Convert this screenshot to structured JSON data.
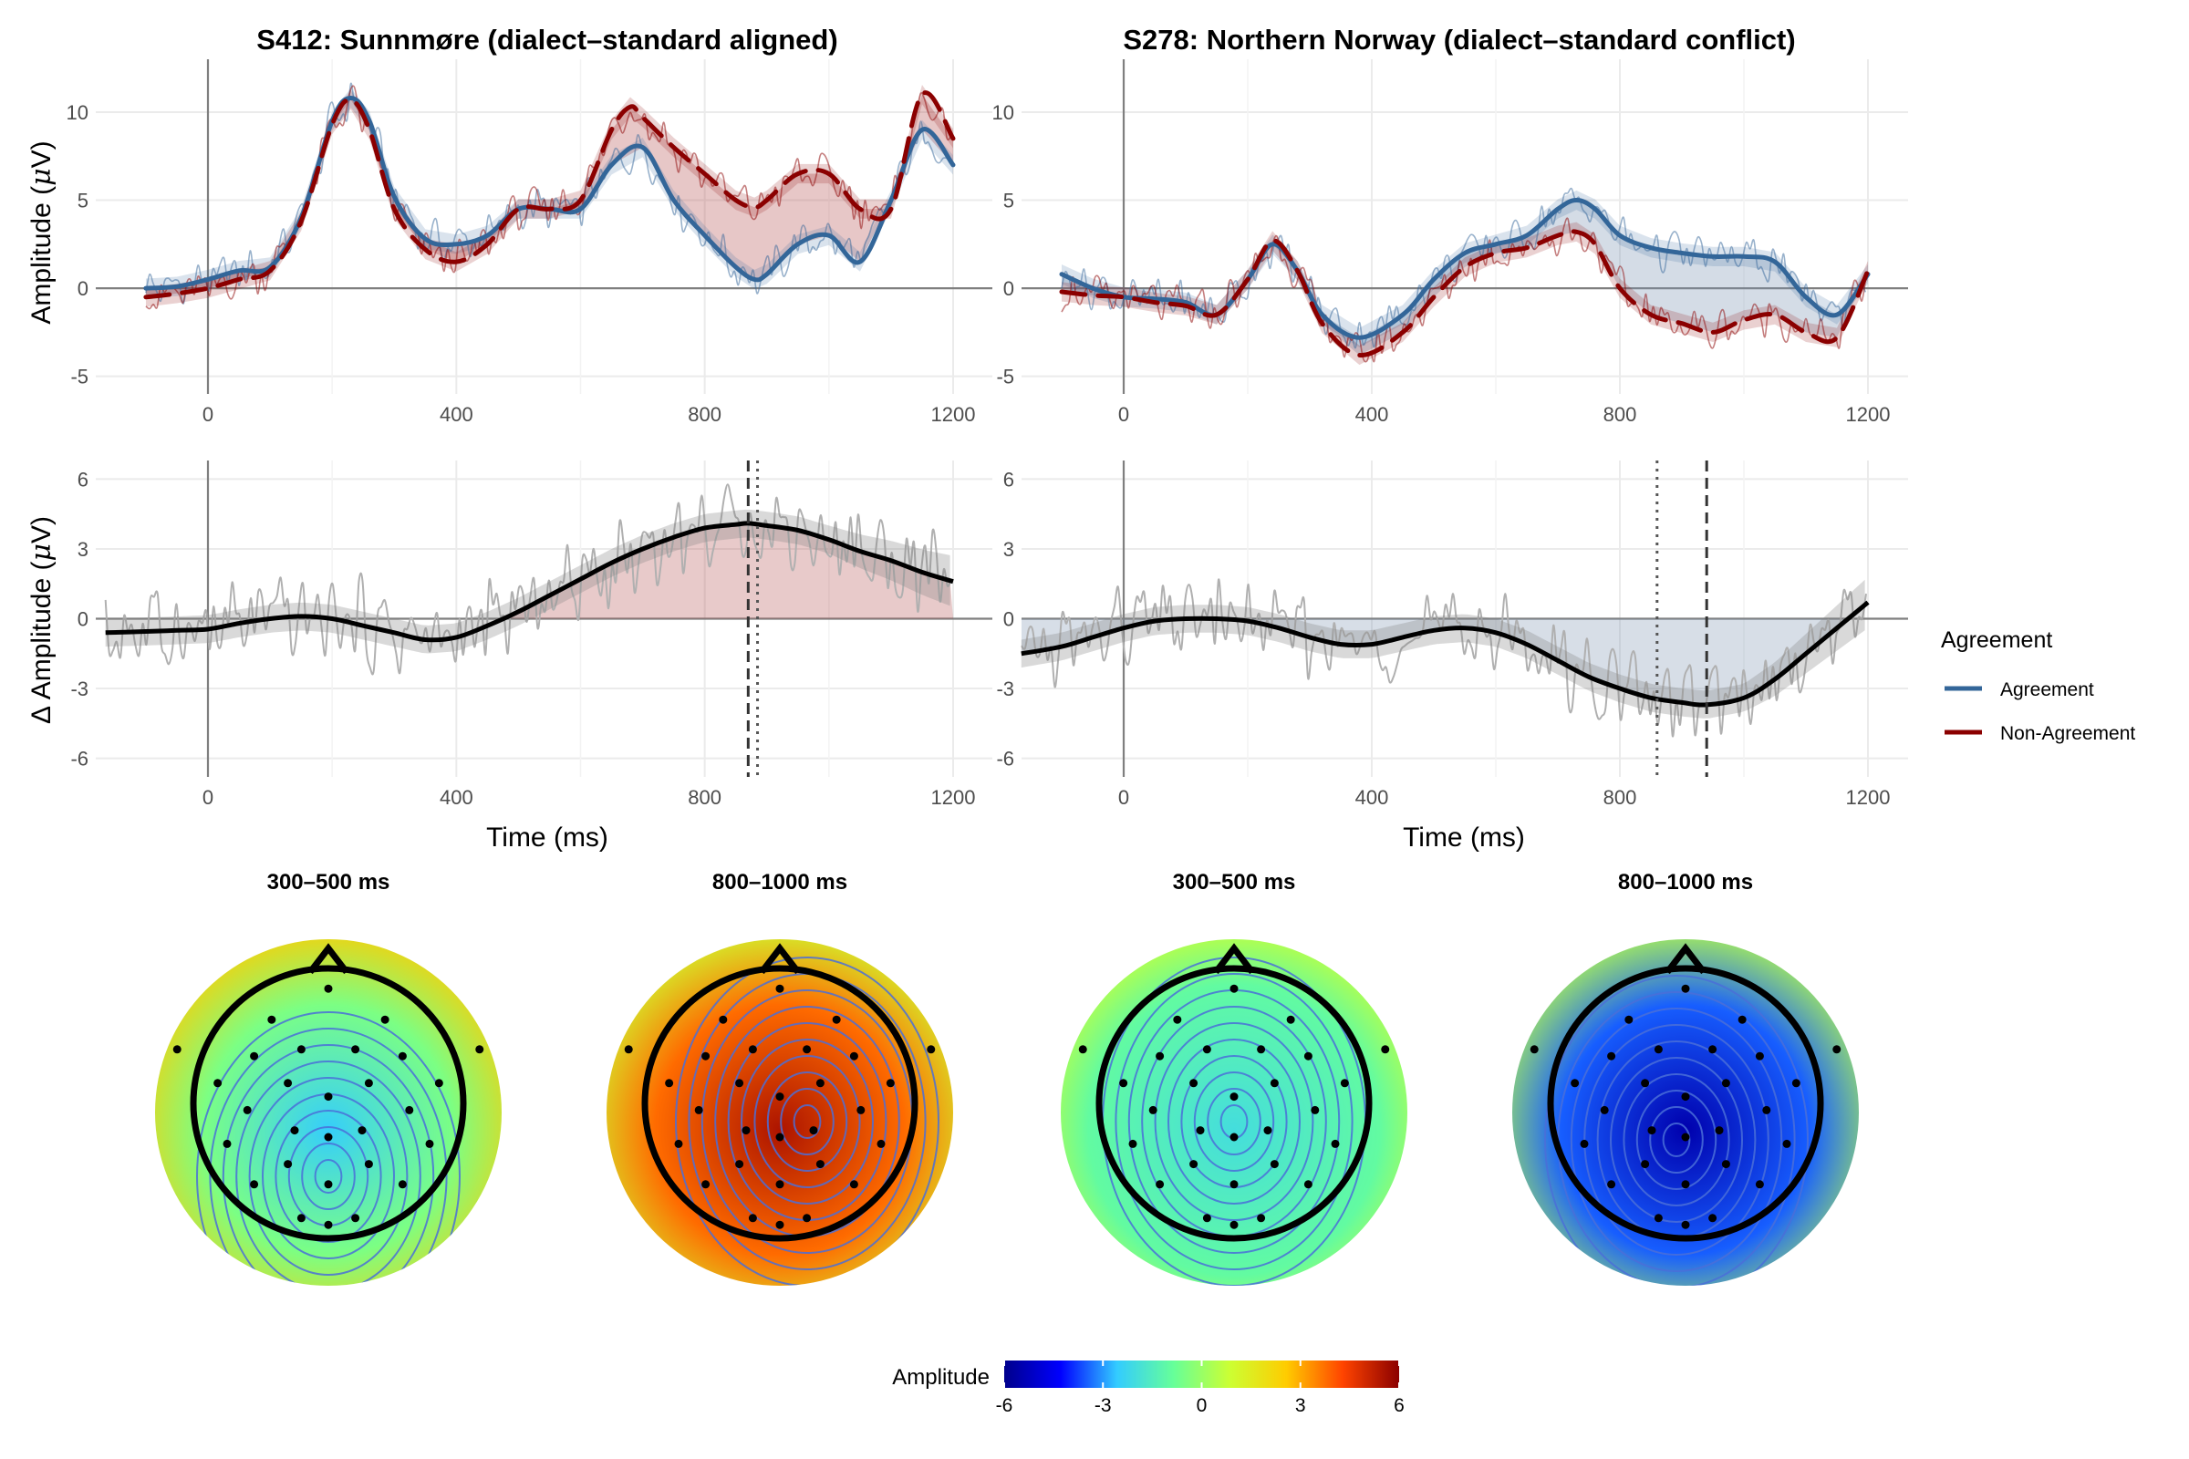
{
  "chart_data": [
    {
      "type": "line",
      "title": "S412: Sunnmøre (dialect–standard aligned)",
      "xlabel": "",
      "ylabel": "Amplitude (μV)",
      "xlim": [
        -100,
        1200
      ],
      "ylim": [
        -6,
        13
      ],
      "xticks": [
        0,
        400,
        800,
        1200
      ],
      "yticks": [
        -5,
        0,
        5,
        10
      ],
      "shaded_region": "Non-Agreement above Agreement",
      "series": [
        {
          "name": "Agreement",
          "color": "#336699",
          "x": [
            -100,
            -50,
            0,
            50,
            100,
            150,
            200,
            230,
            260,
            300,
            350,
            400,
            450,
            500,
            550,
            600,
            650,
            700,
            750,
            800,
            850,
            880,
            900,
            950,
            1000,
            1050,
            1100,
            1150,
            1200
          ],
          "y": [
            0.0,
            0.1,
            0.5,
            1.0,
            1.2,
            4.0,
            9.5,
            10.8,
            9.5,
            5.2,
            2.8,
            2.5,
            3.0,
            4.5,
            4.5,
            4.5,
            7.0,
            8.0,
            5.0,
            3.0,
            1.2,
            0.5,
            0.8,
            2.5,
            3.0,
            1.5,
            5.0,
            9.0,
            7.0
          ]
        },
        {
          "name": "Non-Agreement",
          "color": "#8b0000",
          "x": [
            -100,
            -50,
            0,
            50,
            100,
            150,
            200,
            230,
            260,
            300,
            350,
            400,
            450,
            500,
            550,
            600,
            650,
            680,
            700,
            750,
            800,
            850,
            880,
            900,
            950,
            1000,
            1050,
            1100,
            1150,
            1200
          ],
          "y": [
            -0.5,
            -0.3,
            0.0,
            0.5,
            1.0,
            3.8,
            9.3,
            10.7,
            9.0,
            4.5,
            2.2,
            1.5,
            2.5,
            4.5,
            4.5,
            5.0,
            9.0,
            10.3,
            9.7,
            8.0,
            6.5,
            5.0,
            4.6,
            5.0,
            6.5,
            6.5,
            4.5,
            4.5,
            11.0,
            8.5
          ]
        }
      ]
    },
    {
      "type": "line",
      "title": "S278: Northern Norway (dialect–standard conflict)",
      "xlabel": "",
      "ylabel": "",
      "xlim": [
        -100,
        1200
      ],
      "ylim": [
        -6,
        13
      ],
      "xticks": [
        0,
        400,
        800,
        1200
      ],
      "yticks": [
        -5,
        0,
        5,
        10
      ],
      "shaded_region": "Agreement above Non-Agreement",
      "series": [
        {
          "name": "Agreement",
          "color": "#336699",
          "x": [
            -100,
            -50,
            0,
            50,
            100,
            150,
            200,
            240,
            280,
            320,
            380,
            450,
            500,
            550,
            600,
            650,
            700,
            730,
            760,
            800,
            850,
            900,
            950,
            1000,
            1050,
            1100,
            1150,
            1200
          ],
          "y": [
            0.8,
            0.0,
            -0.5,
            -0.6,
            -0.8,
            -1.5,
            0.5,
            2.5,
            1.0,
            -1.5,
            -2.8,
            -1.5,
            0.5,
            2.0,
            2.5,
            3.0,
            4.5,
            5.0,
            4.5,
            3.0,
            2.3,
            2.0,
            1.8,
            1.8,
            1.5,
            -0.5,
            -1.5,
            0.8
          ]
        },
        {
          "name": "Non-Agreement",
          "color": "#8b0000",
          "x": [
            -100,
            -50,
            0,
            50,
            100,
            150,
            200,
            240,
            280,
            320,
            380,
            450,
            500,
            550,
            600,
            650,
            700,
            730,
            760,
            800,
            850,
            900,
            950,
            1000,
            1050,
            1100,
            1150,
            1200
          ],
          "y": [
            -0.2,
            -0.4,
            -0.5,
            -0.8,
            -1.0,
            -1.5,
            0.5,
            2.7,
            1.0,
            -2.0,
            -3.8,
            -2.5,
            -0.5,
            1.2,
            2.0,
            2.3,
            3.0,
            3.2,
            2.5,
            0.0,
            -1.5,
            -2.0,
            -2.5,
            -1.8,
            -1.5,
            -2.5,
            -2.8,
            1.0
          ]
        }
      ]
    },
    {
      "type": "line",
      "title": "",
      "xlabel": "Time (ms)",
      "ylabel": "Δ Amplitude (μV)",
      "xlim": [
        -165,
        1230
      ],
      "ylim": [
        -6.8,
        6.8
      ],
      "xticks": [
        0,
        400,
        800,
        1200
      ],
      "yticks": [
        -6,
        -3,
        0,
        3,
        6
      ],
      "vlines": {
        "dashed": 870,
        "dotted": 885
      },
      "series": [
        {
          "name": "",
          "color": "#000000",
          "x": [
            -165,
            -100,
            -50,
            0,
            50,
            100,
            150,
            200,
            250,
            300,
            350,
            400,
            450,
            500,
            550,
            600,
            650,
            700,
            750,
            800,
            850,
            870,
            900,
            950,
            1000,
            1050,
            1100,
            1150,
            1200
          ],
          "y": [
            -0.6,
            -0.55,
            -0.5,
            -0.45,
            -0.2,
            0.0,
            0.1,
            0.0,
            -0.3,
            -0.6,
            -0.9,
            -0.8,
            -0.3,
            0.3,
            1.0,
            1.7,
            2.4,
            3.0,
            3.5,
            3.9,
            4.05,
            4.1,
            4.0,
            3.8,
            3.4,
            2.9,
            2.5,
            2.0,
            1.6
          ]
        }
      ]
    },
    {
      "type": "line",
      "title": "",
      "xlabel": "Time (ms)",
      "ylabel": "",
      "xlim": [
        -165,
        1230
      ],
      "ylim": [
        -6.8,
        6.8
      ],
      "xticks": [
        0,
        400,
        800,
        1200
      ],
      "yticks": [
        -6,
        -3,
        0,
        3,
        6
      ],
      "vlines": {
        "dashed": 940,
        "dotted": 860
      },
      "series": [
        {
          "name": "",
          "color": "#000000",
          "x": [
            -165,
            -100,
            -50,
            0,
            50,
            100,
            150,
            200,
            250,
            300,
            350,
            400,
            450,
            500,
            550,
            600,
            650,
            700,
            750,
            800,
            850,
            900,
            940,
            1000,
            1050,
            1100,
            1150,
            1200
          ],
          "y": [
            -1.5,
            -1.2,
            -0.8,
            -0.4,
            -0.1,
            0.0,
            0.0,
            -0.1,
            -0.4,
            -0.8,
            -1.1,
            -1.1,
            -0.8,
            -0.5,
            -0.4,
            -0.6,
            -1.1,
            -1.8,
            -2.5,
            -3.0,
            -3.4,
            -3.6,
            -3.7,
            -3.4,
            -2.6,
            -1.5,
            -0.4,
            0.7
          ]
        }
      ]
    },
    {
      "type": "heatmap",
      "subtype": "scalp-topography",
      "panels": [
        {
          "title": "300–500 ms",
          "mean_amplitude": -0.5,
          "min": -2.5,
          "max": 2.5
        },
        {
          "title": "800–1000 ms",
          "mean_amplitude": 3.8,
          "min": 1.0,
          "max": 5.5
        },
        {
          "title": "300–500 ms",
          "mean_amplitude": -1.0,
          "min": -2.0,
          "max": 0.8
        },
        {
          "title": "800–1000 ms",
          "mean_amplitude": -3.5,
          "min": -5.5,
          "max": 0.5
        }
      ],
      "colorbar": {
        "title": "Amplitude",
        "range": [
          -6,
          6
        ],
        "ticks": [
          -6,
          -3,
          0,
          3,
          6
        ],
        "colors": [
          "#00008b",
          "#0000ff",
          "#33ccff",
          "#66ff99",
          "#ccff33",
          "#ffcc00",
          "#ff4400",
          "#8b0000"
        ]
      }
    }
  ],
  "legend": {
    "title": "Agreement",
    "placement": "right",
    "items": [
      {
        "label": "Agreement",
        "color": "#336699"
      },
      {
        "label": "Non-Agreement",
        "color": "#8b0000"
      }
    ]
  }
}
